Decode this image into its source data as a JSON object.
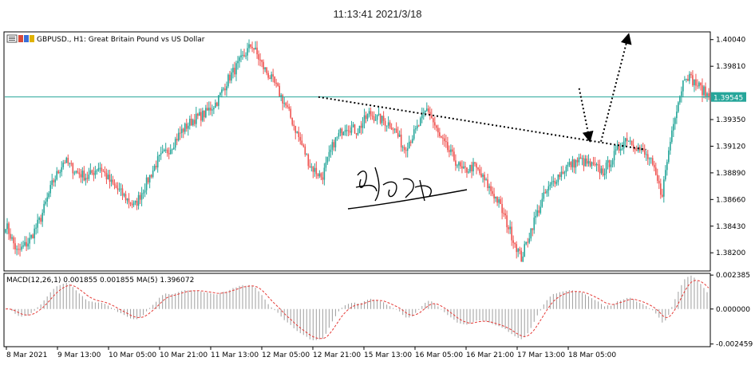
{
  "header": {
    "timestamp": "11:13:41 2021/3/18"
  },
  "colors": {
    "bull": "#26a69a",
    "bear": "#ef5350",
    "grid": "#000000",
    "level_line": "#26a69a",
    "price_tag_bg": "#26a69a",
    "macd_signal": "#e53935",
    "macd_hist": "#9e9e9e"
  },
  "chart_data": [
    {
      "type": "candlestick",
      "title": "GBPUSD., H1: Great Britain Pound vs US Dollar",
      "symbol": "GBPUSD.",
      "timeframe": "H1",
      "ylim": [
        1.3805,
        1.401
      ],
      "x_tick_labels": [
        "8 Mar 2021",
        "9 Mar 13:00",
        "10 Mar 05:00",
        "10 Mar 21:00",
        "11 Mar 13:00",
        "12 Mar 05:00",
        "12 Mar 21:00",
        "15 Mar 13:00",
        "16 Mar 05:00",
        "16 Mar 21:00",
        "17 Mar 13:00",
        "18 Mar 05:00"
      ],
      "y_tick_labels": [
        "1.40040",
        "1.39810",
        "1.39350",
        "1.39120",
        "1.38890",
        "1.38660",
        "1.38430",
        "1.38200"
      ],
      "y_tick_values": [
        1.4004,
        1.3981,
        1.3935,
        1.3912,
        1.3889,
        1.3866,
        1.3843,
        1.382
      ],
      "current_price": {
        "value": 1.39545,
        "label": "1.39545"
      },
      "price_path": [
        1.3845,
        1.382,
        1.383,
        1.385,
        1.388,
        1.39,
        1.389,
        1.3885,
        1.3895,
        1.388,
        1.387,
        1.386,
        1.388,
        1.39,
        1.391,
        1.3925,
        1.3935,
        1.394,
        1.395,
        1.397,
        1.3985,
        1.4,
        1.398,
        1.3965,
        1.3945,
        1.392,
        1.3895,
        1.3885,
        1.3915,
        1.393,
        1.3925,
        1.394,
        1.3935,
        1.393,
        1.391,
        1.3925,
        1.3945,
        1.392,
        1.3905,
        1.389,
        1.3895,
        1.388,
        1.3865,
        1.384,
        1.3815,
        1.3845,
        1.387,
        1.3885,
        1.3895,
        1.39,
        1.3895,
        1.389,
        1.3905,
        1.392,
        1.391,
        1.39,
        1.387,
        1.3935,
        1.3975,
        1.3965,
        1.3955
      ],
      "overlays": [
        {
          "kind": "trendline",
          "from": [
            0.445,
            1.39545
          ],
          "to": [
            0.91,
            1.3909
          ],
          "style": "dotted"
        },
        {
          "kind": "forecast",
          "from": [
            0.815,
            1.3962
          ],
          "to": [
            0.83,
            1.3917
          ],
          "arrow": true,
          "style": "dotted"
        },
        {
          "kind": "forecast",
          "from": [
            0.846,
            1.3916
          ],
          "to": [
            0.885,
            1.4008
          ],
          "arrow": true,
          "style": "dotted"
        }
      ]
    },
    {
      "type": "histogram",
      "title": "MACD(12,26,1) 0.001855 0.001855 MA(5) 1.396072",
      "indicator": "MACD",
      "parameters": "MACD(12,26,1)",
      "values_readout": "0.001855 0.001855",
      "signal_label": "MA(5)",
      "signal_readout": "1.396072",
      "ylim": [
        -0.00259,
        0.00245
      ],
      "y_tick_labels": [
        "0.002385",
        "0.000000",
        "-0.002459"
      ],
      "y_tick_values": [
        0.002385,
        0.0,
        -0.002459
      ]
    }
  ]
}
